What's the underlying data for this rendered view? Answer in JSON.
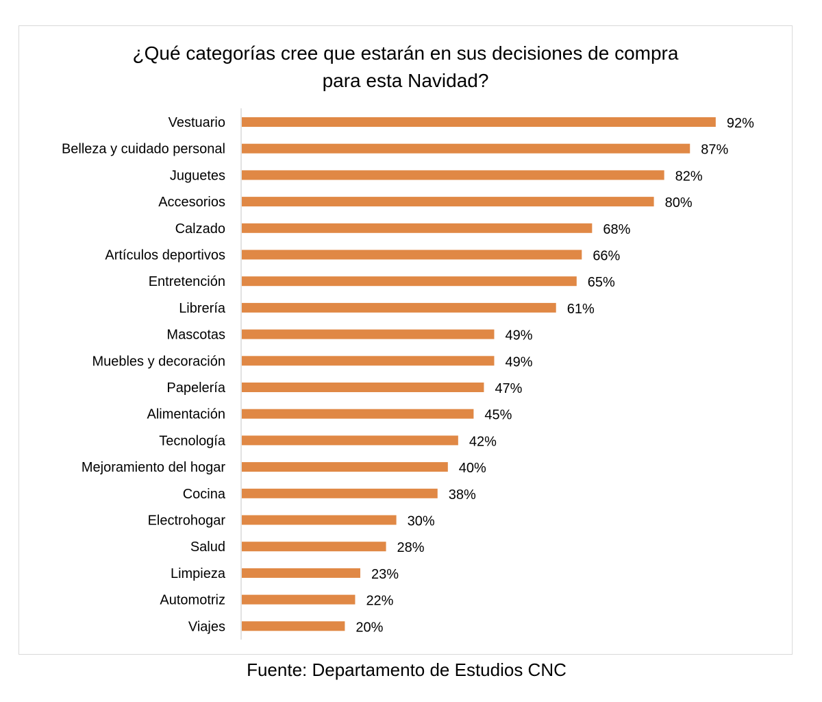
{
  "chart_data": {
    "type": "bar",
    "orientation": "horizontal",
    "title_lines": [
      "¿Qué categorías cree que estarán en sus decisiones de compra",
      "para esta Navidad?"
    ],
    "categories": [
      "Vestuario",
      "Belleza y cuidado personal",
      "Juguetes",
      "Accesorios",
      "Calzado",
      "Artículos deportivos",
      "Entretención",
      "Librería",
      "Mascotas",
      "Muebles y decoración",
      "Papelería",
      "Alimentación",
      "Tecnología",
      "Mejoramiento del hogar",
      "Cocina",
      "Electrohogar",
      "Salud",
      "Limpieza",
      "Automotriz",
      "Viajes"
    ],
    "values": [
      92,
      87,
      82,
      80,
      68,
      66,
      65,
      61,
      49,
      49,
      47,
      45,
      42,
      40,
      38,
      30,
      28,
      23,
      22,
      20
    ],
    "value_labels": [
      "92%",
      "87%",
      "82%",
      "80%",
      "68%",
      "66%",
      "65%",
      "61%",
      "49%",
      "49%",
      "47%",
      "45%",
      "42%",
      "40%",
      "38%",
      "30%",
      "28%",
      "23%",
      "22%",
      "20%"
    ],
    "unit": "%",
    "xlim": [
      0,
      100
    ],
    "grid": false,
    "legend": "none",
    "bar_color": "#e08845"
  },
  "source_note": "Fuente: Departamento de Estudios CNC"
}
